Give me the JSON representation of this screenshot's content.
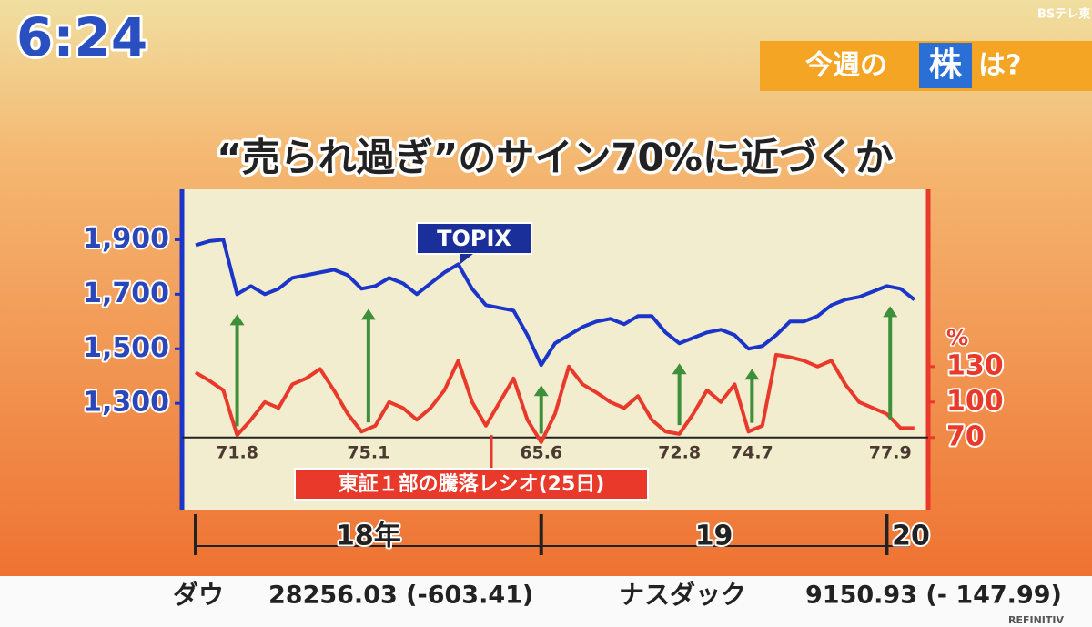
{
  "screen": {
    "clock": "6:24",
    "channel": "BSテレ東",
    "topic_pre": "今週の",
    "topic_key": "株",
    "topic_post": "は?",
    "ticker": {
      "dow_label": "ダウ",
      "dow_value": "28256.03 (-603.41)",
      "nasdaq_label": "ナスダック",
      "nasdaq_value": "9150.93 (- 147.99)",
      "source": "REFINITIV"
    }
  },
  "chart_data": {
    "type": "line",
    "title": "“売られ過ぎ”のサイン70%に近づくか",
    "y2_label": "%",
    "x": [
      2018.0,
      2018.04,
      2018.08,
      2018.12,
      2018.16,
      2018.2,
      2018.24,
      2018.28,
      2018.32,
      2018.36,
      2018.4,
      2018.44,
      2018.48,
      2018.52,
      2018.56,
      2018.6,
      2018.64,
      2018.68,
      2018.72,
      2018.76,
      2018.8,
      2018.84,
      2018.88,
      2018.92,
      2018.96,
      2019.0,
      2019.04,
      2019.08,
      2019.12,
      2019.16,
      2019.2,
      2019.24,
      2019.28,
      2019.32,
      2019.36,
      2019.4,
      2019.44,
      2019.48,
      2019.52,
      2019.56,
      2019.6,
      2019.64,
      2019.68,
      2019.72,
      2019.76,
      2019.8,
      2019.84,
      2019.88,
      2019.92,
      2019.96,
      2020.0,
      2020.04,
      2020.08
    ],
    "series": [
      {
        "name": "TOPIX",
        "color": "#1a35c8",
        "values": [
          1880,
          1895,
          1900,
          1700,
          1730,
          1700,
          1720,
          1760,
          1770,
          1780,
          1790,
          1770,
          1720,
          1730,
          1760,
          1740,
          1700,
          1740,
          1780,
          1810,
          1720,
          1660,
          1650,
          1640,
          1550,
          1440,
          1520,
          1550,
          1580,
          1600,
          1610,
          1590,
          1620,
          1620,
          1560,
          1520,
          1540,
          1560,
          1570,
          1550,
          1500,
          1510,
          1550,
          1600,
          1600,
          1620,
          1660,
          1680,
          1690,
          1710,
          1730,
          1720,
          1680
        ]
      },
      {
        "name": "東証１部の騰落レシオ(25日)",
        "color": "#e8392a",
        "axis": "y2",
        "values": [
          125,
          118,
          110,
          72,
          85,
          100,
          95,
          115,
          120,
          128,
          110,
          90,
          75,
          80,
          100,
          95,
          85,
          95,
          110,
          135,
          100,
          80,
          100,
          120,
          85,
          66,
          90,
          130,
          115,
          108,
          100,
          95,
          105,
          85,
          75,
          73,
          90,
          110,
          100,
          115,
          75,
          80,
          140,
          138,
          135,
          130,
          135,
          115,
          100,
          95,
          90,
          78,
          78
        ]
      }
    ],
    "annotations": [
      {
        "x": 2018.12,
        "value": 71.8
      },
      {
        "x": 2018.5,
        "value": 75.1
      },
      {
        "x": 2019.0,
        "value": 65.6
      },
      {
        "x": 2019.4,
        "value": 72.8
      },
      {
        "x": 2019.61,
        "value": 74.7
      },
      {
        "x": 2020.01,
        "value": 77.9
      }
    ],
    "xlim": [
      2018,
      2020.12
    ],
    "xticks": [
      {
        "value": 2018.5,
        "label": "18年"
      },
      {
        "value": 2019.5,
        "label": "19"
      },
      {
        "value": 2020.07,
        "label": "20"
      }
    ],
    "xminorticks": [
      2018,
      2019,
      2020
    ],
    "ylim": [
      910,
      2085
    ],
    "yticks": [
      {
        "value": 1300,
        "label": "1,300"
      },
      {
        "value": 1500,
        "label": "1,500"
      },
      {
        "value": 1700,
        "label": "1,700"
      },
      {
        "value": 1900,
        "label": "1,900"
      }
    ],
    "y2lim": [
      9,
      280
    ],
    "y2ticks": [
      70,
      100,
      130
    ],
    "y2baseline": 70,
    "arrow_color": "#3d8f3a"
  }
}
